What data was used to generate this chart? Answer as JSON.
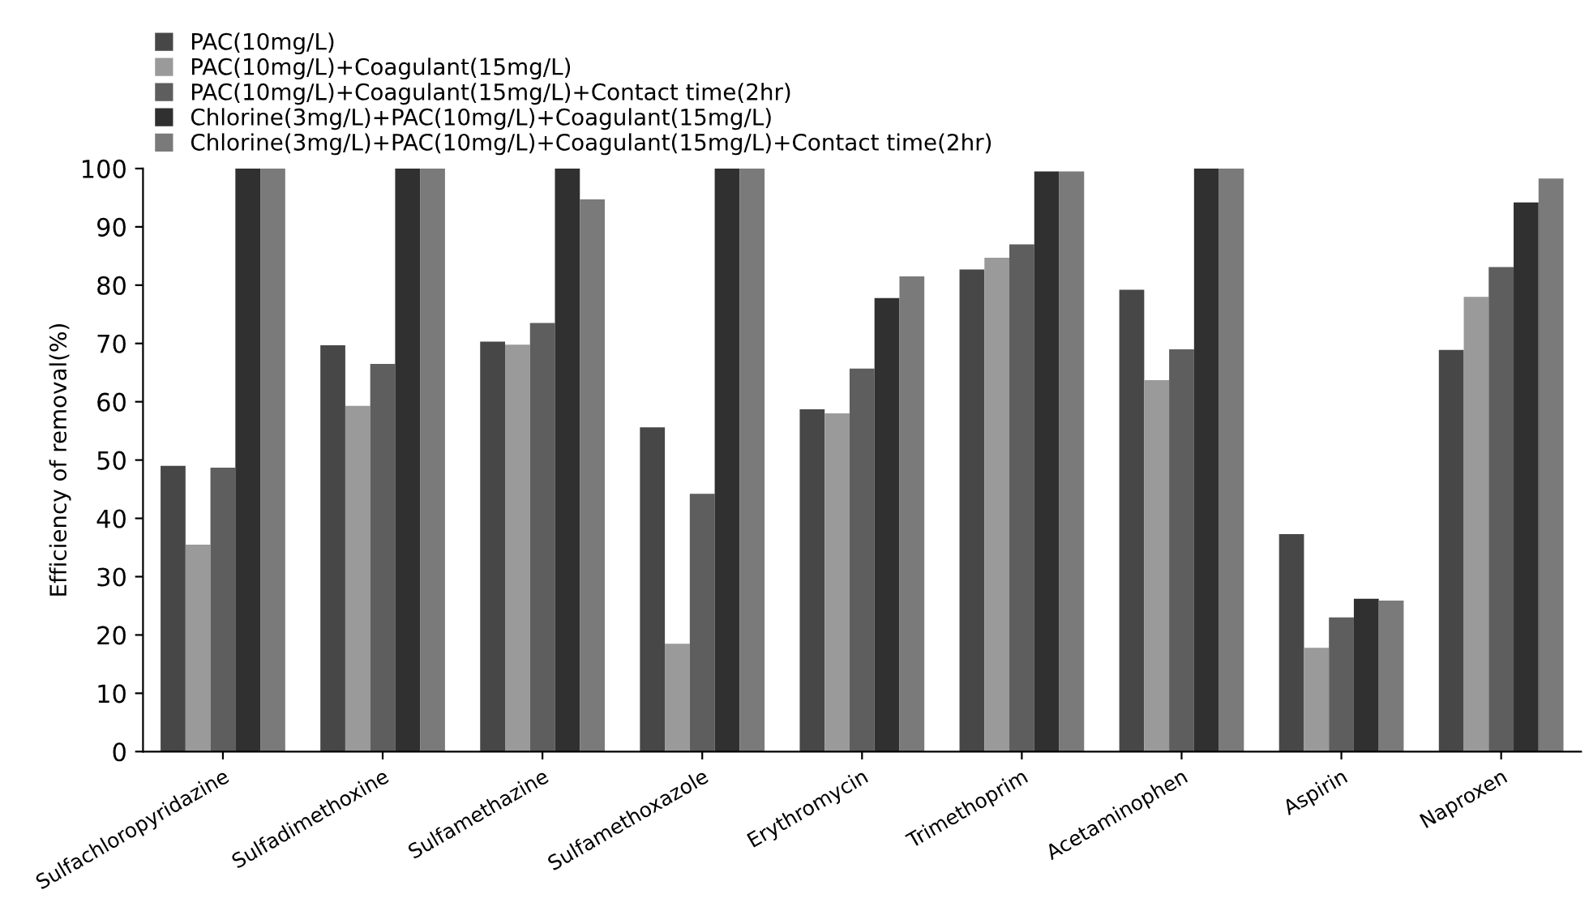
{
  "chart_data": {
    "type": "bar",
    "ylabel": "Efficiency of removal(%)",
    "categories": [
      "Sulfachloropyridazine",
      "Sulfadimethoxine",
      "Sulfamethazine",
      "Sulfamethoxazole",
      "Erythromycin",
      "Trimethoprim",
      "Acetaminophen",
      "Aspirin",
      "Naproxen"
    ],
    "series": [
      {
        "name": "PAC(10mg/L)",
        "color": "#474747",
        "values": [
          49,
          69.7,
          70.3,
          55.6,
          58.7,
          82.7,
          79.2,
          37.3,
          68.9
        ]
      },
      {
        "name": "PAC(10mg/L)+Coagulant(15mg/L)",
        "color": "#9a9a9a",
        "values": [
          35.5,
          59.3,
          69.8,
          18.5,
          58,
          84.7,
          63.7,
          17.8,
          78
        ]
      },
      {
        "name": "PAC(10mg/L)+Coagulant(15mg/L)+Contact time(2hr)",
        "color": "#5e5e5e",
        "values": [
          48.7,
          66.5,
          73.5,
          44.2,
          65.7,
          87,
          69,
          23,
          83.1
        ]
      },
      {
        "name": "Chlorine(3mg/L)+PAC(10mg/L)+Coagulant(15mg/L)",
        "color": "#303030",
        "values": [
          100,
          100,
          100,
          100,
          77.8,
          99.5,
          100,
          26.2,
          94.2
        ]
      },
      {
        "name": "Chlorine(3mg/L)+PAC(10mg/L)+Coagulant(15mg/L)+Contact time(2hr)",
        "color": "#7a7a7a",
        "values": [
          100,
          100,
          94.7,
          100,
          81.5,
          99.5,
          100,
          25.9,
          98.3
        ]
      }
    ],
    "ylim": [
      0,
      100
    ],
    "yticks": [
      0,
      10,
      20,
      30,
      40,
      50,
      60,
      70,
      80,
      90,
      100
    ],
    "legend": "top",
    "grid": false
  }
}
